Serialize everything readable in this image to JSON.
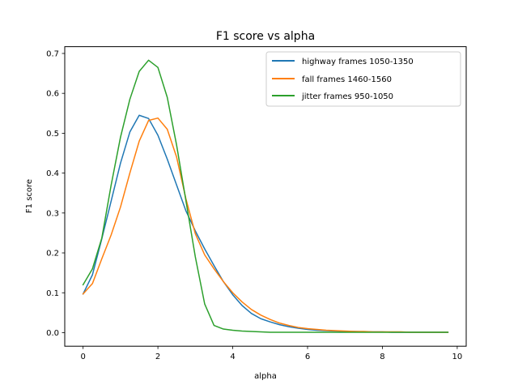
{
  "chart_data": {
    "type": "line",
    "title": "F1 score vs alpha",
    "xlabel": "alpha",
    "ylabel": "F1 score",
    "xlim": [
      -0.49,
      10.24
    ],
    "ylim": [
      -0.034,
      0.717
    ],
    "xticks": [
      0,
      2,
      4,
      6,
      8,
      10
    ],
    "xtick_labels": [
      "0",
      "2",
      "4",
      "6",
      "8",
      "10"
    ],
    "yticks": [
      0.0,
      0.1,
      0.2,
      0.3,
      0.4,
      0.5,
      0.6,
      0.7
    ],
    "ytick_labels": [
      "0.0",
      "0.1",
      "0.2",
      "0.3",
      "0.4",
      "0.5",
      "0.6",
      "0.7"
    ],
    "grid": false,
    "legend_position": "top-right",
    "x": [
      0,
      0.25,
      0.5,
      0.75,
      1.0,
      1.25,
      1.5,
      1.75,
      2.0,
      2.25,
      2.5,
      2.75,
      3.0,
      3.25,
      3.5,
      3.75,
      4.0,
      4.25,
      4.5,
      4.75,
      5.0,
      5.25,
      5.5,
      5.75,
      6.0,
      6.25,
      6.5,
      6.75,
      7.0,
      7.25,
      7.5,
      7.75,
      8.0,
      8.25,
      8.5,
      8.75,
      9.0,
      9.25,
      9.5,
      9.75
    ],
    "series": [
      {
        "name": "highway frames 1050-1350",
        "color": "#1f77b4",
        "values": [
          0.097,
          0.145,
          0.235,
          0.33,
          0.425,
          0.503,
          0.545,
          0.537,
          0.495,
          0.435,
          0.37,
          0.305,
          0.255,
          0.21,
          0.168,
          0.128,
          0.095,
          0.068,
          0.048,
          0.035,
          0.027,
          0.02,
          0.015,
          0.011,
          0.008,
          0.006,
          0.005,
          0.004,
          0.003,
          0.003,
          0.002,
          0.002,
          0.002,
          0.001,
          0.001,
          0.001,
          0.001,
          0.001,
          0.001,
          0.001
        ]
      },
      {
        "name": "fall frames 1460-1560",
        "color": "#ff7f0e",
        "values": [
          0.097,
          0.123,
          0.185,
          0.245,
          0.315,
          0.4,
          0.48,
          0.532,
          0.538,
          0.51,
          0.44,
          0.335,
          0.248,
          0.195,
          0.16,
          0.128,
          0.1,
          0.077,
          0.058,
          0.044,
          0.033,
          0.024,
          0.018,
          0.013,
          0.01,
          0.008,
          0.006,
          0.005,
          0.004,
          0.003,
          0.003,
          0.002,
          0.002,
          0.002,
          0.002,
          0.001,
          0.001,
          0.001,
          0.001,
          0.001
        ]
      },
      {
        "name": "jitter frames 950-1050",
        "color": "#2ca02c",
        "values": [
          0.12,
          0.16,
          0.237,
          0.37,
          0.49,
          0.585,
          0.655,
          0.683,
          0.665,
          0.59,
          0.47,
          0.33,
          0.19,
          0.072,
          0.018,
          0.009,
          0.006,
          0.004,
          0.003,
          0.002,
          0.001,
          0.001,
          0.001,
          0.001,
          0.001,
          0.001,
          0.001,
          0.001,
          0.001,
          0.001,
          0.001,
          0.001,
          0.001,
          0.001,
          0.001,
          0.001,
          0.001,
          0.001,
          0.001,
          0.001
        ]
      }
    ]
  }
}
